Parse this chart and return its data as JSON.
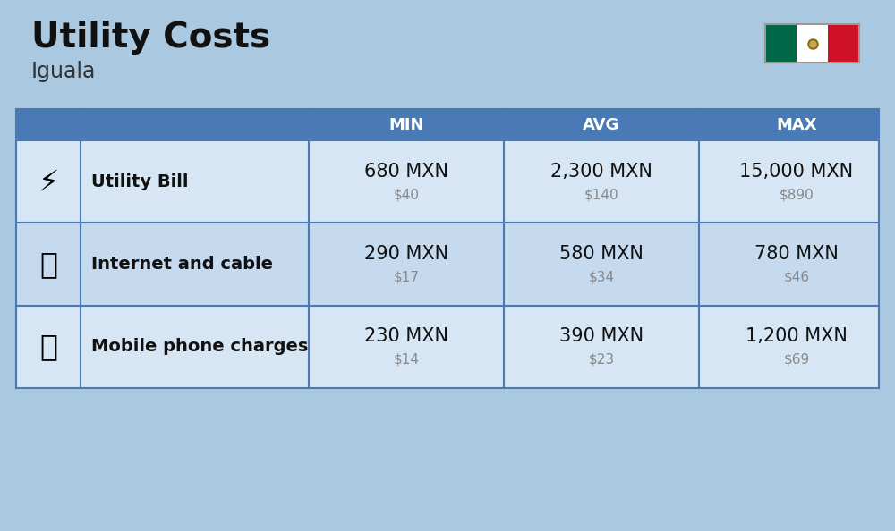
{
  "title": "Utility Costs",
  "subtitle": "Iguala",
  "background_color": "#aac8e0",
  "header_color": "#4a7ab5",
  "header_text_color": "#ffffff",
  "row_colors": [
    "#d6e6f4",
    "#c5d9ef"
  ],
  "table_border_color": "#4a7ab5",
  "categories": [
    "Utility Bill",
    "Internet and cable",
    "Mobile phone charges"
  ],
  "col_headers": [
    "MIN",
    "AVG",
    "MAX"
  ],
  "data": [
    {
      "min_mxn": "680 MXN",
      "min_usd": "$40",
      "avg_mxn": "2,300 MXN",
      "avg_usd": "$140",
      "max_mxn": "15,000 MXN",
      "max_usd": "$890"
    },
    {
      "min_mxn": "290 MXN",
      "min_usd": "$17",
      "avg_mxn": "580 MXN",
      "avg_usd": "$34",
      "max_mxn": "780 MXN",
      "max_usd": "$46"
    },
    {
      "min_mxn": "230 MXN",
      "min_usd": "$14",
      "avg_mxn": "390 MXN",
      "avg_usd": "$23",
      "max_mxn": "1,200 MXN",
      "max_usd": "$69"
    }
  ],
  "title_fontsize": 28,
  "subtitle_fontsize": 17,
  "header_fontsize": 13,
  "cell_mxn_fontsize": 15,
  "cell_usd_fontsize": 11,
  "category_fontsize": 14,
  "flag_colors": [
    "#006847",
    "#ffffff",
    "#ce1126"
  ]
}
